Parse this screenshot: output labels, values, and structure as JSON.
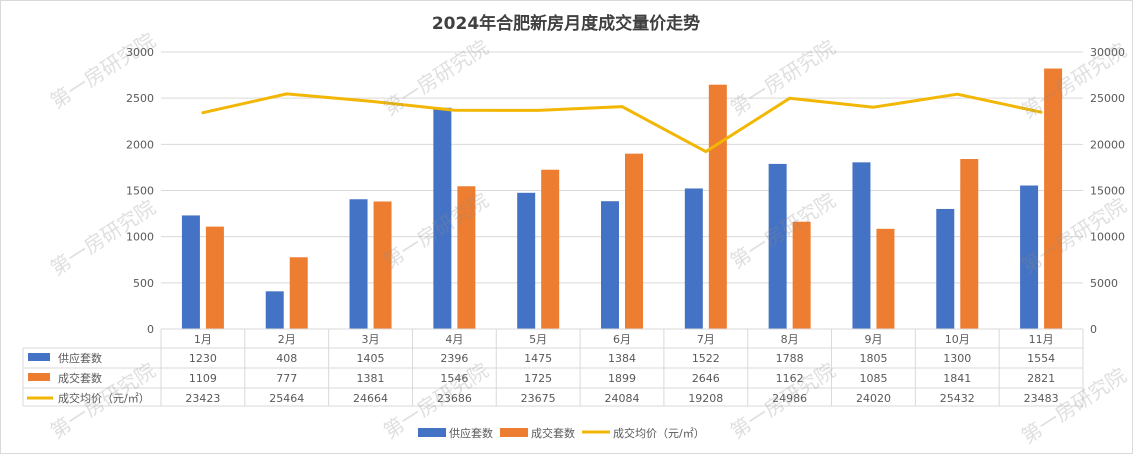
{
  "colors": {
    "supply": "#4472C4",
    "deal": "#ED7D31",
    "price": "#F2B705",
    "grid": "#D9D9D9",
    "text": "#595959",
    "title": "#404040"
  },
  "watermark": "第一房研究院",
  "chart_data": {
    "type": "bar",
    "title": "2024年合肥新房月度成交量价走势",
    "categories": [
      "1月",
      "2月",
      "3月",
      "4月",
      "5月",
      "6月",
      "7月",
      "8月",
      "9月",
      "10月",
      "11月"
    ],
    "series": [
      {
        "name": "供应套数",
        "kind": "bar",
        "axis": "left",
        "values": [
          1230,
          408,
          1405,
          2396,
          1475,
          1384,
          1522,
          1788,
          1805,
          1300,
          1554
        ]
      },
      {
        "name": "成交套数",
        "kind": "bar",
        "axis": "left",
        "values": [
          1109,
          777,
          1381,
          1546,
          1725,
          1899,
          2646,
          1162,
          1085,
          1841,
          2821
        ]
      },
      {
        "name": "成交均价（元/㎡）",
        "kind": "line",
        "axis": "right",
        "values": [
          23423,
          25464,
          24664,
          23686,
          23675,
          24084,
          19208,
          24986,
          24020,
          25432,
          23483
        ]
      }
    ],
    "y_left": {
      "min": 0,
      "max": 3000,
      "ticks": [
        0,
        500,
        1000,
        1500,
        2000,
        2500,
        3000
      ]
    },
    "y_right": {
      "min": 0,
      "max": 30000,
      "ticks": [
        0,
        5000,
        10000,
        15000,
        20000,
        25000,
        30000
      ]
    },
    "grid": true,
    "data_table": true,
    "legend_position": "bottom"
  }
}
